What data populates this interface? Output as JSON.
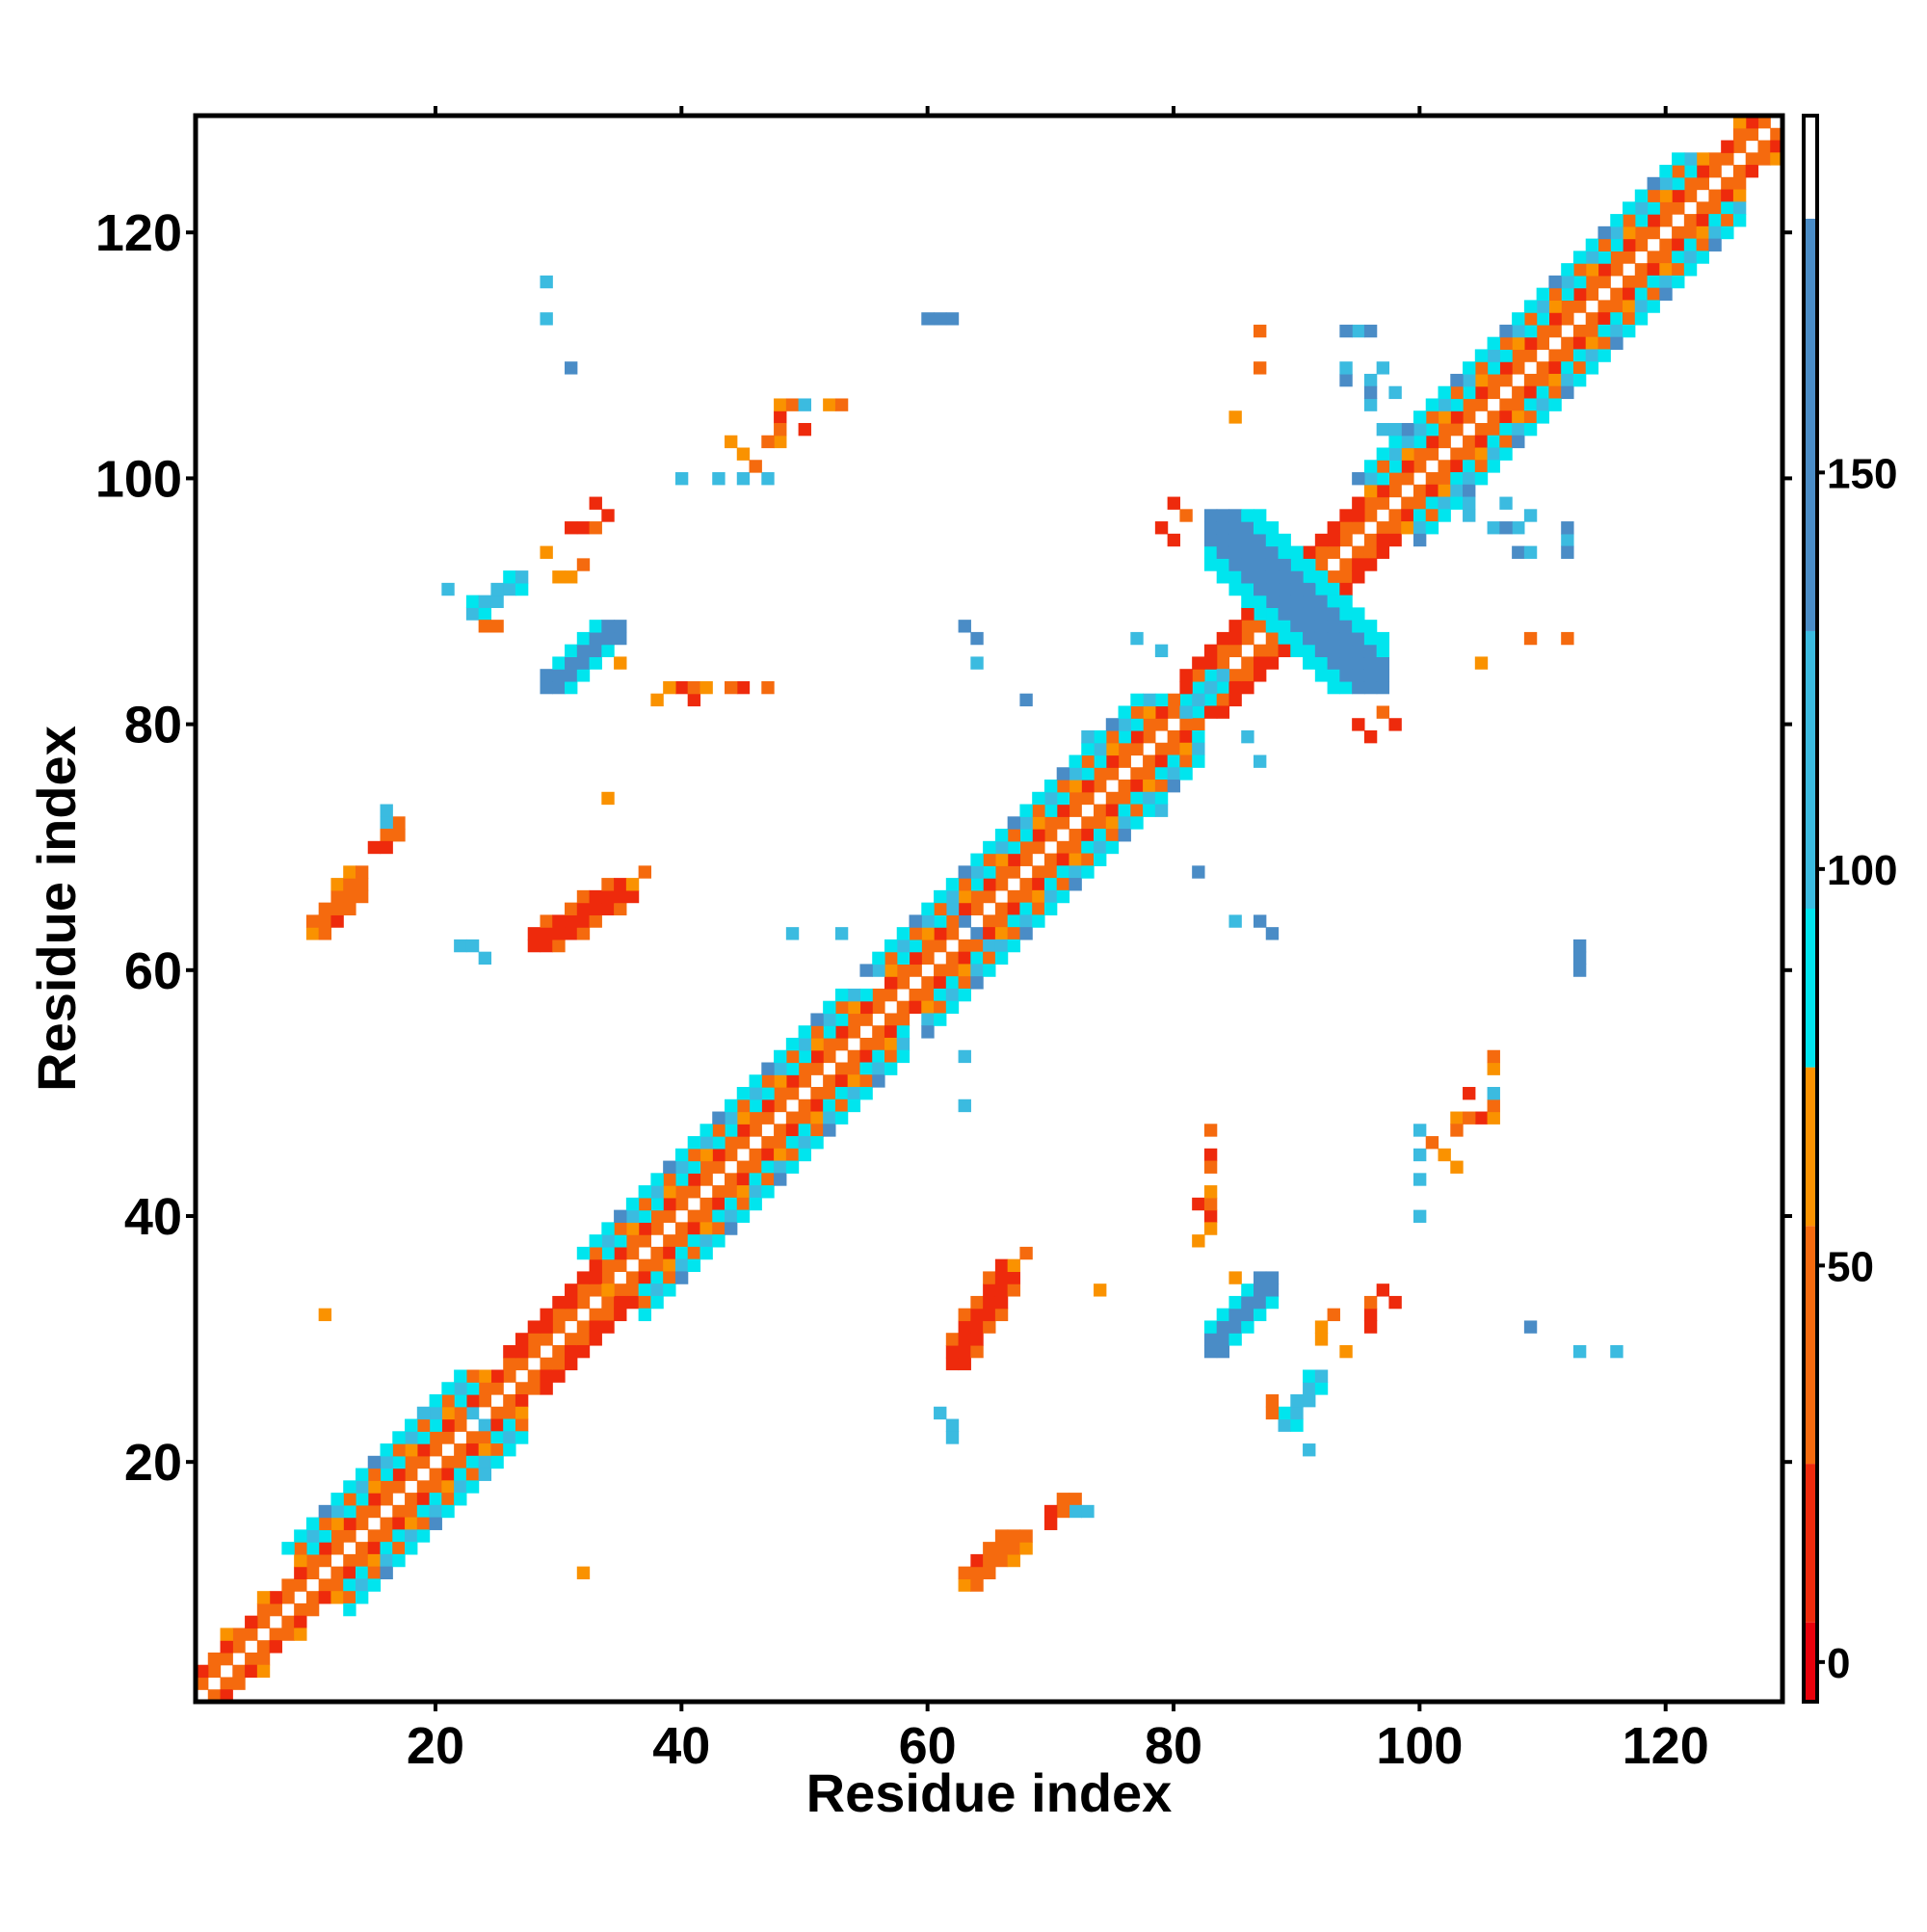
{
  "chart_data": {
    "type": "heatmap",
    "title": "",
    "xlabel": "Residue index",
    "ylabel": "Residue index",
    "xlim": [
      0.5,
      129.5
    ],
    "ylim": [
      0.5,
      129.5
    ],
    "x_ticks": [
      20,
      40,
      60,
      80,
      100,
      120
    ],
    "y_ticks": [
      20,
      40,
      60,
      80,
      100,
      120
    ],
    "grid": false,
    "symmetric": true,
    "colorbar": {
      "min": -5,
      "max": 195,
      "ticks": [
        0,
        50,
        100,
        150
      ],
      "position": "right",
      "segments": [
        {
          "from": -5,
          "to": 5,
          "color": "#e8000b"
        },
        {
          "from": 5,
          "to": 25,
          "color": "#ee2a0c"
        },
        {
          "from": 25,
          "to": 55,
          "color": "#f56a0e"
        },
        {
          "from": 55,
          "to": 75,
          "color": "#fa9200"
        },
        {
          "from": 75,
          "to": 95,
          "color": "#00e5ee"
        },
        {
          "from": 95,
          "to": 130,
          "color": "#3bbbe0"
        },
        {
          "from": 130,
          "to": 182,
          "color": "#4a8cc6"
        },
        {
          "from": 182,
          "to": 195,
          "color": "#ffffff"
        }
      ]
    },
    "diagonal_band": {
      "x_range": [
        2,
        129
      ],
      "note": "near-diagonal contacts; offset 2 red/orange, offset 3-5 alternating orange/cyan in helical regions"
    },
    "helix_regions": [
      [
        13,
        27
      ],
      [
        37,
        58
      ],
      [
        60,
        68
      ],
      [
        68,
        82
      ],
      [
        100,
        126
      ]
    ],
    "strand_regions": [
      [
        29,
        36
      ],
      [
        84,
        98
      ]
    ],
    "blobs": [
      {
        "x": [
          62,
          67
        ],
        "y": [
          28,
          36
        ],
        "value": 18
      },
      {
        "x": [
          63,
          68
        ],
        "y": [
          10,
          14
        ],
        "value": 35
      },
      {
        "x": [
          83,
          88
        ],
        "y": [
          29,
          35
        ],
        "value": 150
      },
      {
        "x": [
          89,
          92
        ],
        "y": [
          23,
          27
        ],
        "value": 110
      },
      {
        "x": [
          83,
          97
        ],
        "y": [
          83,
          97
        ],
        "value": 150,
        "anti": true
      },
      {
        "x": [
          81,
          84
        ],
        "y": [
          81,
          84
        ],
        "value": 120
      }
    ],
    "points": [
      [
        72,
        17,
        25
      ],
      [
        73,
        16,
        110
      ],
      [
        70,
        15,
        10
      ],
      [
        34,
        34,
        60
      ],
      [
        32,
        11,
        60
      ],
      [
        11,
        32,
        60
      ],
      [
        22,
        62,
        110
      ],
      [
        24,
        61,
        110
      ],
      [
        24,
        19,
        110
      ],
      [
        24,
        23,
        110
      ],
      [
        85,
        35,
        65
      ],
      [
        93,
        32,
        40
      ],
      [
        96,
        31,
        5
      ],
      [
        98,
        33,
        15
      ],
      [
        92,
        30,
        60
      ],
      [
        109,
        31,
        140
      ],
      [
        113,
        29,
        130
      ],
      [
        116,
        29,
        110
      ],
      [
        103,
        48,
        60
      ],
      [
        105,
        48,
        5
      ],
      [
        106,
        48,
        60
      ],
      [
        106,
        49,
        110
      ],
      [
        106,
        52,
        60
      ],
      [
        100,
        45,
        110
      ],
      [
        102,
        45,
        65
      ],
      [
        103,
        44,
        60
      ],
      [
        100,
        40,
        110
      ],
      [
        83,
        45,
        10
      ],
      [
        82,
        41,
        10
      ],
      [
        83,
        40,
        5
      ],
      [
        82,
        38,
        60
      ],
      [
        63,
        53,
        110
      ],
      [
        63,
        49,
        110
      ],
      [
        62,
        23,
        110
      ],
      [
        64,
        63,
        110
      ],
      [
        65,
        62,
        110
      ],
      [
        63,
        64,
        140
      ],
      [
        113,
        60,
        140
      ],
      [
        82,
        68,
        140
      ],
      [
        87,
        64,
        140
      ],
      [
        88,
        63,
        140
      ],
      [
        79,
        86,
        120
      ],
      [
        64,
        87,
        140
      ],
      [
        68,
        82,
        140
      ],
      [
        64,
        85,
        110
      ],
      [
        87,
        77,
        110
      ],
      [
        73,
        79,
        110
      ],
      [
        41,
        83,
        30
      ],
      [
        42,
        83,
        60
      ],
      [
        44,
        83,
        25
      ],
      [
        39,
        83,
        60
      ],
      [
        47,
        83,
        40
      ],
      [
        43,
        100,
        110
      ],
      [
        47,
        100,
        110
      ],
      [
        46,
        101,
        30
      ],
      [
        47,
        103,
        45
      ],
      [
        48,
        104,
        50
      ],
      [
        50,
        104,
        10
      ],
      [
        49,
        106,
        40
      ],
      [
        50,
        106,
        110
      ],
      [
        53,
        106,
        50
      ],
      [
        31,
        109,
        130
      ],
      [
        29,
        113,
        110
      ],
      [
        29,
        116,
        110
      ],
      [
        61,
        113,
        140
      ],
      [
        62,
        113,
        140
      ],
      [
        87,
        109,
        50
      ],
      [
        87,
        112,
        50
      ],
      [
        85,
        105,
        60
      ],
      [
        95,
        112,
        140
      ],
      [
        96,
        112,
        140
      ],
      [
        96,
        108,
        110
      ],
      [
        98,
        107,
        110
      ],
      [
        97,
        104,
        110
      ],
      [
        98,
        104,
        110
      ],
      [
        99,
        103,
        110
      ],
      [
        104,
        97,
        110
      ],
      [
        106,
        96,
        110
      ],
      [
        107,
        96,
        140
      ],
      [
        109,
        97,
        110
      ],
      [
        108,
        94,
        140
      ],
      [
        109,
        94,
        110
      ],
      [
        112,
        95,
        110
      ],
      [
        112,
        94,
        140
      ],
      [
        109,
        87,
        50
      ],
      [
        112,
        87,
        30
      ],
      [
        105,
        85,
        60
      ],
      [
        96,
        79,
        5
      ],
      [
        98,
        80,
        15
      ],
      [
        80,
        98,
        10
      ],
      [
        80,
        95,
        5
      ],
      [
        81,
        97,
        30
      ],
      [
        32,
        96,
        20
      ],
      [
        33,
        96,
        30
      ],
      [
        34,
        97,
        10
      ],
      [
        29,
        94,
        60
      ],
      [
        31,
        92,
        60
      ],
      [
        21,
        91,
        110
      ],
      [
        24,
        90,
        110
      ],
      [
        24,
        88,
        25
      ],
      [
        25,
        88,
        40
      ],
      [
        16,
        72,
        110
      ],
      [
        16,
        71,
        40
      ],
      [
        17,
        71,
        25
      ],
      [
        15,
        70,
        20
      ],
      [
        16,
        70,
        20
      ],
      [
        14,
        66,
        35
      ],
      [
        13,
        65,
        30
      ],
      [
        12,
        64,
        20
      ],
      [
        11,
        63,
        40
      ],
      [
        10,
        63,
        60
      ],
      [
        34,
        74,
        60
      ],
      [
        37,
        68,
        35
      ],
      [
        36,
        67,
        60
      ]
    ]
  }
}
